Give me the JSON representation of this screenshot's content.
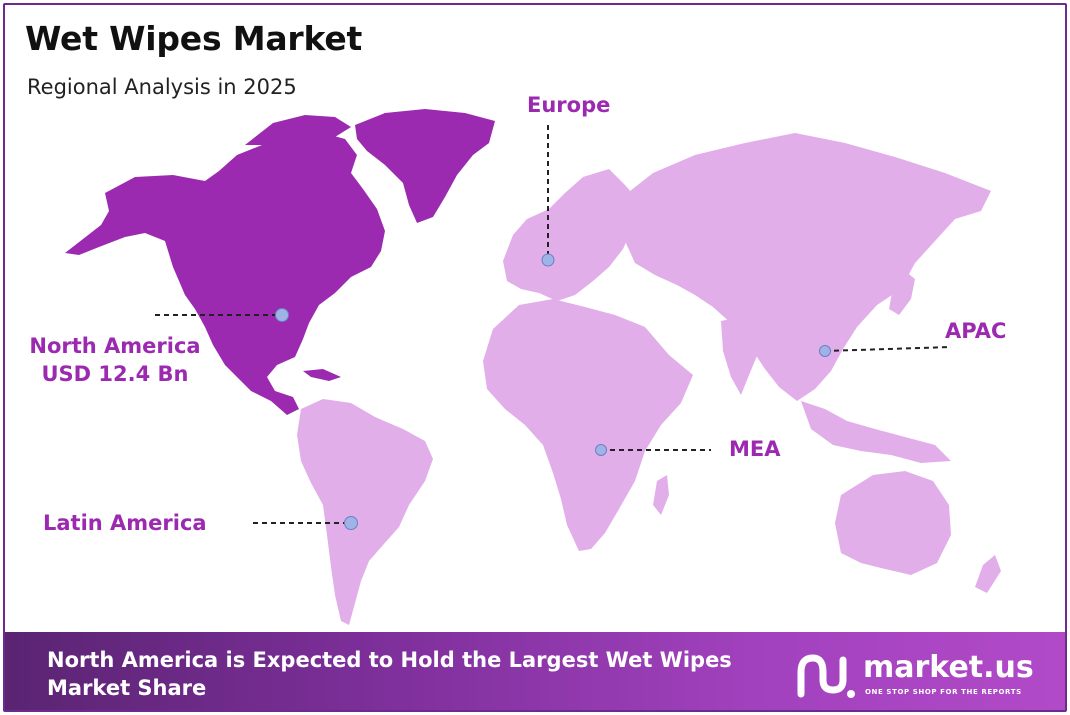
{
  "header": {
    "title": "Wet Wipes Market",
    "subtitle": "Regional Analysis in 2025"
  },
  "regions": [
    {
      "id": "north-america",
      "name": "North America",
      "value": "USD 12.4 Bn",
      "highlighted": true
    },
    {
      "id": "europe",
      "name": "Europe"
    },
    {
      "id": "apac",
      "name": "APAC"
    },
    {
      "id": "mea",
      "name": "MEA"
    },
    {
      "id": "latin-america",
      "name": "Latin America"
    }
  ],
  "colors": {
    "highlight_region": "#9b2ab1",
    "other_regions": "#e1aeea",
    "label": "#9b2ab1",
    "marker": "#9fb3e6",
    "frame": "#6b2a8c"
  },
  "banner": {
    "text": "North America is Expected to Hold the Largest Wet Wipes Market Share"
  },
  "logo": {
    "word": "market.us",
    "tagline": "ONE STOP SHOP FOR THE REPORTS"
  }
}
